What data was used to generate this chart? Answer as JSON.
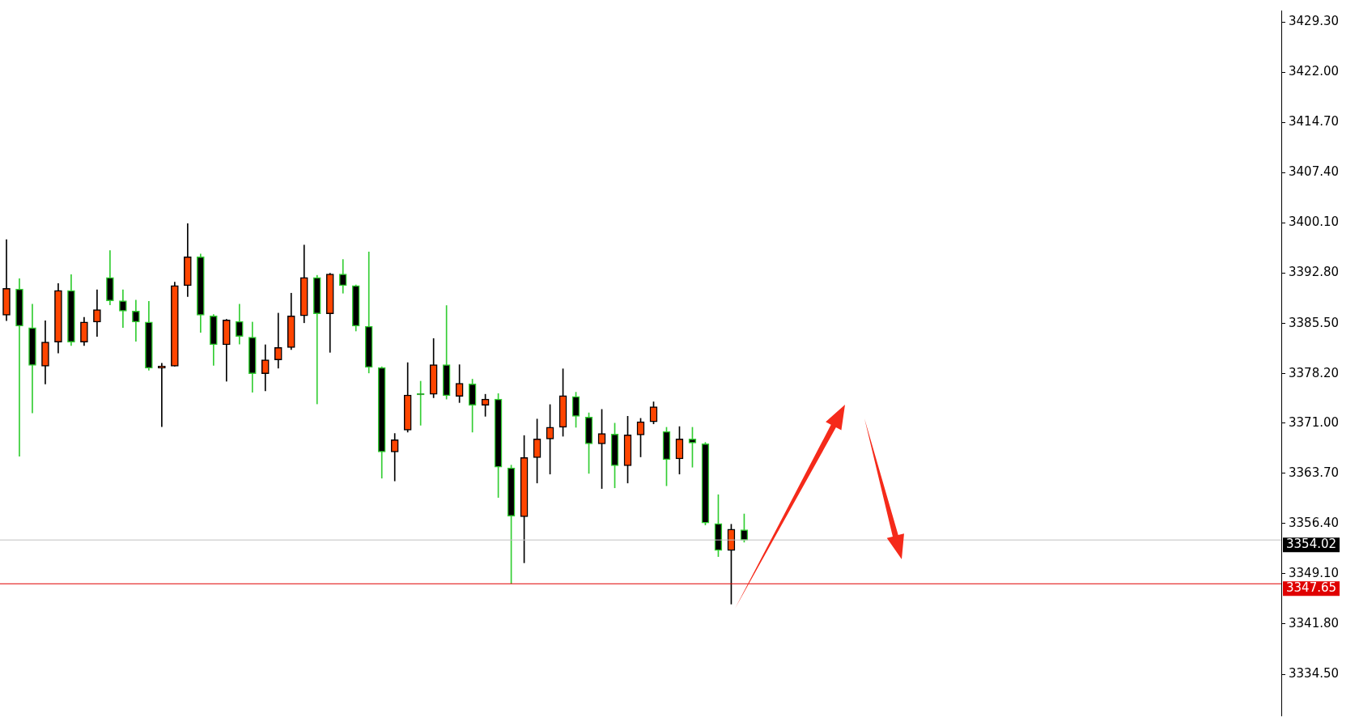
{
  "chart_data": {
    "type": "candlestick",
    "categories": [
      null,
      null,
      null,
      null,
      null,
      null,
      null,
      null,
      null,
      null,
      null,
      null,
      null,
      null,
      null,
      null,
      null,
      null,
      null,
      null,
      null,
      null,
      null,
      null,
      null,
      null,
      null,
      null,
      null,
      null,
      null,
      null,
      null,
      null,
      null,
      null,
      null,
      null,
      null,
      null,
      null,
      null,
      null,
      null,
      null,
      null,
      null,
      null,
      null,
      null,
      null,
      null,
      null,
      null,
      null,
      null,
      null,
      null,
      null,
      null,
      null,
      null,
      null,
      null,
      null,
      null,
      null,
      null,
      null,
      null,
      null,
      null,
      null,
      null,
      null,
      null,
      null,
      null,
      null,
      null,
      null,
      null,
      null,
      null,
      null,
      null,
      null,
      null,
      null,
      null,
      null,
      null,
      null,
      null,
      null,
      null,
      null,
      null,
      null
    ],
    "ohlc": [
      [
        3386.7,
        3397.7,
        3385.9,
        3390.6
      ],
      [
        3390.5,
        3392.0,
        3366.2,
        3385.1
      ],
      [
        3384.9,
        3388.3,
        3372.5,
        3379.4
      ],
      [
        3379.3,
        3385.9,
        3376.7,
        3382.8
      ],
      [
        3382.8,
        3391.3,
        3381.2,
        3390.3
      ],
      [
        3390.3,
        3392.6,
        3382.3,
        3382.8
      ],
      [
        3382.8,
        3386.4,
        3382.3,
        3385.7
      ],
      [
        3385.7,
        3390.4,
        3383.6,
        3387.5
      ],
      [
        3392.2,
        3396.1,
        3388.2,
        3388.8
      ],
      [
        3388.8,
        3390.4,
        3384.9,
        3387.3
      ],
      [
        3387.3,
        3388.9,
        3382.9,
        3385.7
      ],
      [
        3385.7,
        3388.7,
        3378.7,
        3379.0
      ],
      [
        3379.0,
        3379.7,
        3370.5,
        3379.3
      ],
      [
        3379.3,
        3391.5,
        3379.3,
        3391.0
      ],
      [
        3391.0,
        3400.0,
        3389.4,
        3395.2
      ],
      [
        3395.2,
        3395.6,
        3384.2,
        3386.7
      ],
      [
        3386.6,
        3386.8,
        3379.4,
        3382.4
      ],
      [
        3382.4,
        3386.1,
        3377.1,
        3386.0
      ],
      [
        3385.8,
        3388.3,
        3382.5,
        3383.6
      ],
      [
        3383.5,
        3385.7,
        3375.5,
        3378.2
      ],
      [
        3378.2,
        3382.4,
        3375.7,
        3380.2
      ],
      [
        3380.2,
        3387.0,
        3379.0,
        3382.0
      ],
      [
        3382.0,
        3389.9,
        3381.7,
        3386.6
      ],
      [
        3386.6,
        3396.9,
        3385.6,
        3392.2
      ],
      [
        3392.2,
        3392.5,
        3373.8,
        3386.9
      ],
      [
        3386.9,
        3392.8,
        3381.3,
        3392.7
      ],
      [
        3392.7,
        3394.8,
        3389.9,
        3391.0
      ],
      [
        3391.0,
        3391.1,
        3384.4,
        3385.1
      ],
      [
        3385.1,
        3395.9,
        3378.3,
        3379.1
      ],
      [
        3379.1,
        3379.2,
        3363.0,
        3366.8
      ],
      [
        3366.8,
        3369.5,
        3362.6,
        3368.6
      ],
      [
        3370.0,
        3379.8,
        3369.7,
        3375.1
      ],
      [
        3375.1,
        3377.1,
        3370.7,
        3375.1
      ],
      [
        3375.2,
        3383.3,
        3374.7,
        3379.5
      ],
      [
        3379.5,
        3388.1,
        3374.5,
        3375.0
      ],
      [
        3374.9,
        3379.5,
        3374.0,
        3376.8
      ],
      [
        3376.7,
        3377.4,
        3369.7,
        3373.6
      ],
      [
        3373.6,
        3375.2,
        3372.0,
        3374.5
      ],
      [
        3374.5,
        3375.3,
        3360.2,
        3364.6
      ],
      [
        3364.5,
        3364.9,
        3347.7,
        3357.5
      ],
      [
        3357.4,
        3369.2,
        3350.7,
        3366.0
      ],
      [
        3366.0,
        3371.6,
        3362.3,
        3368.7
      ],
      [
        3368.7,
        3373.7,
        3363.6,
        3370.4
      ],
      [
        3370.4,
        3378.9,
        3369.1,
        3375.0
      ],
      [
        3374.9,
        3375.5,
        3370.4,
        3372.0
      ],
      [
        3371.9,
        3372.5,
        3363.7,
        3368.0
      ],
      [
        3368.0,
        3373.0,
        3361.5,
        3369.5
      ],
      [
        3369.4,
        3371.0,
        3361.6,
        3364.8
      ],
      [
        3364.8,
        3372.0,
        3362.3,
        3369.3
      ],
      [
        3369.3,
        3371.7,
        3366.1,
        3371.2
      ],
      [
        3371.2,
        3374.1,
        3370.9,
        3373.4
      ],
      [
        3369.8,
        3370.4,
        3361.9,
        3365.7
      ],
      [
        3365.8,
        3370.5,
        3363.6,
        3368.7
      ],
      [
        3368.7,
        3370.4,
        3364.6,
        3368.1
      ],
      [
        3368.0,
        3368.2,
        3356.2,
        3356.5
      ],
      [
        3356.4,
        3360.6,
        3351.6,
        3352.5
      ],
      [
        3352.5,
        3356.3,
        3344.7,
        3355.6
      ],
      [
        3355.5,
        3357.8,
        3353.7,
        3354.0
      ],
      null,
      null,
      null,
      null,
      null,
      null,
      null,
      null,
      null,
      null,
      null,
      null,
      null,
      null,
      null,
      null,
      null,
      null,
      null,
      null,
      null,
      null,
      null,
      null,
      null,
      null,
      null,
      null,
      null,
      null,
      null,
      null,
      null,
      null,
      null,
      null,
      null,
      null,
      null,
      null,
      null
    ],
    "ylim": [
      3328.5,
      3431
    ],
    "yticks": [
      {
        "value": 3334.5,
        "label": "3334.50"
      },
      {
        "value": 3341.8,
        "label": "3341.80"
      },
      {
        "value": 3349.1,
        "label": "3349.10"
      },
      {
        "value": 3356.4,
        "label": "3356.40"
      },
      {
        "value": 3363.7,
        "label": "3363.70"
      },
      {
        "value": 3371,
        "label": "3371.00"
      },
      {
        "value": 3378.2,
        "label": "3378.20"
      },
      {
        "value": 3385.5,
        "label": "3385.50"
      },
      {
        "value": 3392.8,
        "label": "3392.80"
      },
      {
        "value": 3400.1,
        "label": "3400.10"
      },
      {
        "value": 3407.4,
        "label": "3407.40"
      },
      {
        "value": 3414.7,
        "label": "3414.70"
      },
      {
        "value": 3422,
        "label": "3422.00"
      },
      {
        "value": 3429.3,
        "label": "3429.30"
      }
    ],
    "ref_lines": [
      {
        "axis": "y",
        "value": 3354.02,
        "label": "3354.02",
        "color": "#c0c0c0"
      },
      {
        "axis": "y",
        "value": 3347.65,
        "label": "3347.65",
        "color": "#e00000"
      }
    ],
    "tick_labels": "y",
    "grid": false,
    "legend": false
  }
}
